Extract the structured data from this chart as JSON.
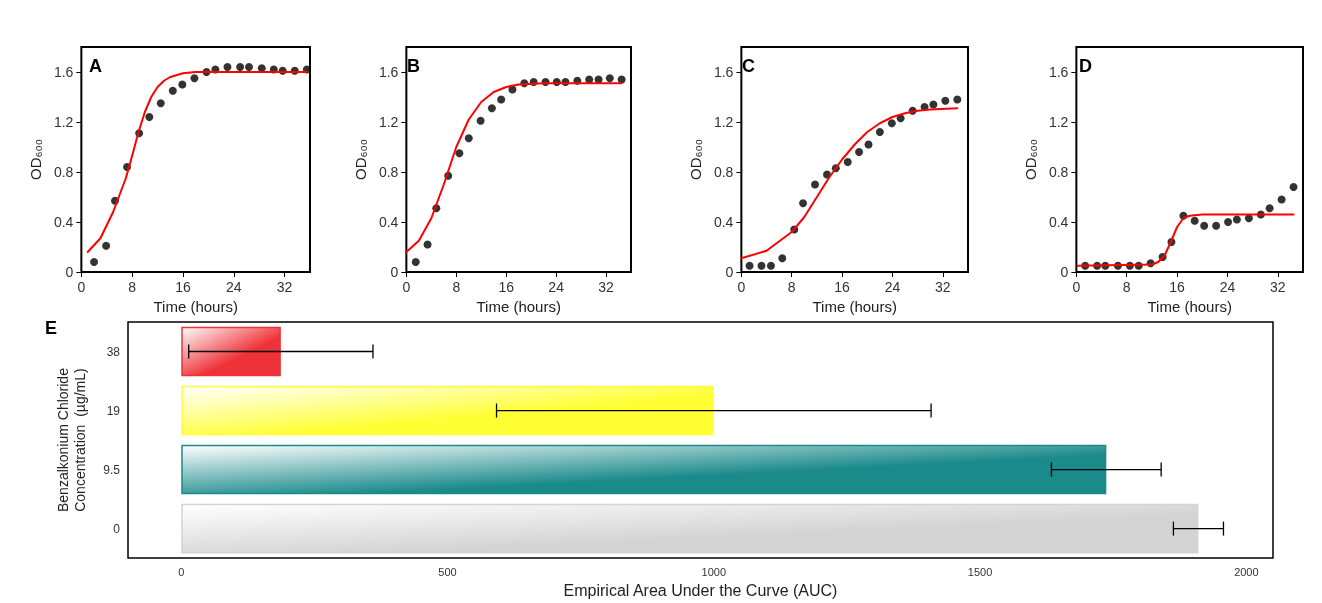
{
  "chart_data": [
    {
      "type": "scatter",
      "title": "A",
      "xlabel": "Time (hours)",
      "ylabel": "OD₆₀₀",
      "xlim": [
        0,
        36
      ],
      "xticks": [
        0,
        8,
        16,
        24,
        32
      ],
      "ylim": [
        0,
        1.8
      ],
      "yticks": [
        0,
        0.4,
        0.8,
        1.2,
        1.6
      ],
      "marker": "circle",
      "grid": false,
      "series": [
        {
          "type": "scatter",
          "color": "#000000",
          "x": [
            2,
            3.9,
            5.3,
            7.2,
            9.1,
            10.7,
            12.5,
            14.4,
            15.9,
            17.8,
            19.7,
            21.1,
            23,
            25,
            26.4,
            28.4,
            30.3,
            31.7,
            33.6,
            35.5
          ],
          "values": [
            0.08,
            0.21,
            0.57,
            0.84,
            1.11,
            1.24,
            1.35,
            1.45,
            1.5,
            1.55,
            1.6,
            1.62,
            1.64,
            1.64,
            1.64,
            1.63,
            1.62,
            1.61,
            1.61,
            1.62
          ]
        },
        {
          "type": "line",
          "marker": "none",
          "color": "#ff0000",
          "x": [
            1,
            3,
            5,
            7,
            8,
            9,
            10,
            11,
            12,
            13,
            14,
            16,
            18,
            22,
            35.5
          ],
          "values": [
            0.16,
            0.27,
            0.48,
            0.75,
            0.93,
            1.12,
            1.28,
            1.4,
            1.48,
            1.53,
            1.56,
            1.59,
            1.6,
            1.6,
            1.6
          ]
        }
      ]
    },
    {
      "type": "scatter",
      "title": "B",
      "xlabel": "Time (hours)",
      "ylabel": "OD₆₀₀",
      "xlim": [
        0,
        36
      ],
      "xticks": [
        0,
        8,
        16,
        24,
        32
      ],
      "ylim": [
        0,
        1.8
      ],
      "yticks": [
        0,
        0.4,
        0.8,
        1.2,
        1.6
      ],
      "marker": "circle",
      "grid": false,
      "series": [
        {
          "type": "scatter",
          "color": "#000000",
          "x": [
            1.5,
            3.4,
            4.8,
            6.7,
            8.5,
            10,
            11.9,
            13.7,
            15.2,
            17,
            18.9,
            20.4,
            22.3,
            24.1,
            25.5,
            27.4,
            29.3,
            30.8,
            32.6,
            34.5
          ],
          "values": [
            0.08,
            0.22,
            0.51,
            0.77,
            0.95,
            1.07,
            1.21,
            1.31,
            1.38,
            1.46,
            1.51,
            1.52,
            1.52,
            1.52,
            1.52,
            1.53,
            1.54,
            1.54,
            1.55,
            1.54
          ]
        },
        {
          "type": "line",
          "marker": "none",
          "color": "#ff0000",
          "x": [
            0,
            2,
            4,
            6,
            8,
            10,
            12,
            14,
            16,
            18,
            22,
            34.5
          ],
          "values": [
            0.16,
            0.25,
            0.43,
            0.7,
            1,
            1.22,
            1.36,
            1.44,
            1.48,
            1.5,
            1.51,
            1.51
          ]
        }
      ]
    },
    {
      "type": "scatter",
      "title": "C",
      "xlabel": "Time (hours)",
      "ylabel": "OD₆₀₀",
      "xlim": [
        0,
        36
      ],
      "xticks": [
        0,
        8,
        16,
        24,
        32
      ],
      "ylim": [
        0,
        1.8
      ],
      "yticks": [
        0,
        0.4,
        0.8,
        1.2,
        1.6
      ],
      "marker": "circle",
      "grid": false,
      "series": [
        {
          "type": "scatter",
          "color": "#000000",
          "x": [
            1.3,
            3.2,
            4.7,
            6.5,
            8.4,
            9.8,
            11.7,
            13.6,
            15,
            16.9,
            18.7,
            20.2,
            22,
            23.9,
            25.3,
            27.2,
            29.1,
            30.5,
            32.4,
            34.3
          ],
          "values": [
            0.05,
            0.05,
            0.05,
            0.11,
            0.34,
            0.55,
            0.7,
            0.78,
            0.83,
            0.88,
            0.96,
            1.02,
            1.12,
            1.19,
            1.23,
            1.29,
            1.32,
            1.34,
            1.37,
            1.38
          ]
        },
        {
          "type": "line",
          "marker": "none",
          "color": "#ff0000",
          "x": [
            0,
            4,
            8,
            10,
            12,
            14,
            16,
            18,
            20,
            22,
            24,
            26,
            28,
            30,
            34.3
          ],
          "values": [
            0.11,
            0.17,
            0.32,
            0.44,
            0.6,
            0.76,
            0.9,
            1.02,
            1.12,
            1.19,
            1.24,
            1.27,
            1.29,
            1.3,
            1.31
          ]
        }
      ]
    },
    {
      "type": "scatter",
      "title": "D",
      "xlabel": "Time (hours)",
      "ylabel": "OD₆₀₀",
      "xlim": [
        0,
        36
      ],
      "xticks": [
        0,
        8,
        16,
        24,
        32
      ],
      "ylim": [
        0,
        1.8
      ],
      "yticks": [
        0,
        0.4,
        0.8,
        1.2,
        1.6
      ],
      "marker": "circle",
      "grid": false,
      "series": [
        {
          "type": "scatter",
          "color": "#000000",
          "x": [
            1.4,
            3.3,
            4.6,
            6.6,
            8.5,
            9.9,
            11.8,
            13.7,
            15.1,
            17,
            18.8,
            20.3,
            22.2,
            24.1,
            25.5,
            27.4,
            29.3,
            30.7,
            32.6,
            34.5
          ],
          "values": [
            0.05,
            0.05,
            0.05,
            0.05,
            0.05,
            0.05,
            0.07,
            0.12,
            0.24,
            0.45,
            0.41,
            0.37,
            0.37,
            0.4,
            0.42,
            0.43,
            0.46,
            0.51,
            0.58,
            0.68
          ]
        },
        {
          "type": "line",
          "marker": "none",
          "color": "#ff0000",
          "x": [
            0.2,
            12,
            13,
            14,
            15,
            16,
            17,
            18,
            20,
            34.5
          ],
          "values": [
            0.05,
            0.06,
            0.08,
            0.13,
            0.24,
            0.36,
            0.43,
            0.45,
            0.46,
            0.46
          ]
        }
      ]
    },
    {
      "type": "bar",
      "orientation": "horizontal",
      "title": "E",
      "xlabel": "Empirical Area Under the Curve (AUC)",
      "ylabel": "Benzalkonium Chloride Concentration  (µg/mL)",
      "categories": [
        "38",
        "19",
        "9.5",
        "0"
      ],
      "values": [
        187,
        1000,
        1737,
        1910
      ],
      "colors": [
        "#ee3338",
        "#ffff33",
        "#1a8a8a",
        "#d4d4d4"
      ],
      "errors": [
        173,
        408,
        103,
        47
      ],
      "xlim": [
        -100,
        2050
      ],
      "xticks": [
        0,
        500,
        1000,
        1500,
        2000
      ],
      "grid": false
    }
  ]
}
